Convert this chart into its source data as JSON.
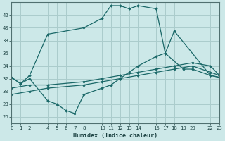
{
  "xlabel": "Humidex (Indice chaleur)",
  "ylabel": "",
  "bg_color": "#cce8e8",
  "grid_color": "#aacccc",
  "line_color": "#1a6868",
  "xlim": [
    0,
    23
  ],
  "ylim": [
    25,
    44
  ],
  "yticks": [
    26,
    28,
    30,
    32,
    34,
    36,
    38,
    40,
    42
  ],
  "xticks": [
    0,
    1,
    2,
    4,
    5,
    6,
    7,
    8,
    10,
    11,
    12,
    13,
    14,
    16,
    17,
    18,
    19,
    20,
    22,
    23
  ],
  "xtick_labels": [
    "0",
    "1",
    "2",
    "4",
    "5",
    "6",
    "7",
    "8",
    "10",
    "11",
    "12",
    "13",
    "14",
    "16",
    "17",
    "18",
    "19",
    "20",
    "22",
    "23"
  ],
  "lines": [
    {
      "x": [
        0,
        1,
        2,
        4,
        8,
        10,
        11,
        12,
        13,
        14,
        16,
        17,
        18,
        22,
        23
      ],
      "y": [
        32.2,
        31.2,
        32.5,
        39.0,
        40.0,
        41.5,
        43.5,
        43.5,
        43.0,
        43.5,
        43.0,
        36.0,
        39.5,
        32.5,
        32.2
      ]
    },
    {
      "x": [
        0,
        1,
        2,
        4,
        5,
        6,
        7,
        8,
        10,
        11,
        12,
        13,
        14,
        16,
        17,
        19,
        20,
        22,
        23
      ],
      "y": [
        32.2,
        31.2,
        32.0,
        28.5,
        28.0,
        27.0,
        26.5,
        29.5,
        30.5,
        31.0,
        32.0,
        33.0,
        34.0,
        35.5,
        36.0,
        33.5,
        33.5,
        32.5,
        32.2
      ]
    },
    {
      "x": [
        0,
        2,
        4,
        8,
        10,
        12,
        14,
        16,
        18,
        20,
        22,
        23
      ],
      "y": [
        29.5,
        30.0,
        30.5,
        31.0,
        31.5,
        32.0,
        32.5,
        33.0,
        33.5,
        34.0,
        33.0,
        32.5
      ]
    },
    {
      "x": [
        0,
        2,
        4,
        8,
        10,
        12,
        14,
        16,
        18,
        20,
        22,
        23
      ],
      "y": [
        30.5,
        31.0,
        31.0,
        31.5,
        32.0,
        32.5,
        33.0,
        33.5,
        34.0,
        34.5,
        34.0,
        32.5
      ]
    }
  ]
}
